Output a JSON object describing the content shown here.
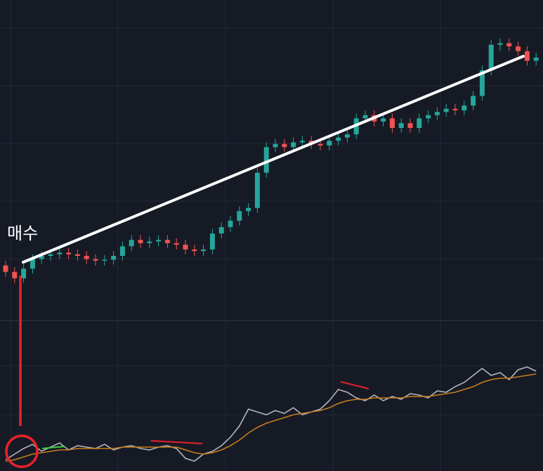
{
  "chart_data": {
    "type": "candlestick",
    "annotation": "매수",
    "ylim": [
      0,
      100
    ],
    "up_color": "#26a69a",
    "down_color": "#ef5350",
    "open": [
      17,
      15,
      13,
      16,
      19,
      20,
      20.5,
      21,
      20.5,
      20,
      19,
      18.5,
      18.8,
      20,
      23,
      25,
      24,
      24.5,
      25,
      24,
      23.5,
      22,
      21.5,
      22,
      27,
      29,
      31,
      34,
      35,
      46,
      54,
      55,
      54,
      55.5,
      56,
      55,
      54.5,
      56,
      57,
      58,
      63,
      64,
      62,
      63,
      60,
      61.5,
      60,
      63,
      64,
      65,
      66,
      65.5,
      67,
      70,
      78,
      86,
      86.5,
      85.5,
      84,
      81
    ],
    "high": [
      18.5,
      16.5,
      17.5,
      20.5,
      21.5,
      22,
      22.5,
      22.5,
      22,
      21.5,
      20.5,
      20.3,
      21.5,
      24.5,
      26.5,
      26.5,
      26,
      26.5,
      26.5,
      25.5,
      25,
      23.5,
      23.5,
      28.5,
      30.5,
      32.5,
      35.5,
      36.5,
      47.5,
      55.5,
      56.5,
      56.5,
      57,
      57.5,
      57.5,
      56.5,
      57.5,
      58.5,
      59.5,
      64.5,
      65.5,
      65.5,
      64.5,
      64.5,
      63,
      63,
      64.5,
      65.5,
      66.5,
      67.5,
      67.5,
      68.5,
      71.5,
      79.5,
      87.5,
      88,
      88,
      87,
      85.5,
      83.5
    ],
    "low": [
      13.5,
      11.5,
      11.5,
      14.5,
      17.5,
      18.5,
      19,
      19,
      18.5,
      17.5,
      17,
      17,
      17.3,
      18.5,
      21.5,
      22.5,
      22.5,
      23,
      22.5,
      22,
      20.5,
      20,
      20,
      20.5,
      25.5,
      27.5,
      29.5,
      32.5,
      33.5,
      44.5,
      52.5,
      52.5,
      52.5,
      54,
      53.5,
      53,
      53,
      54.5,
      55.5,
      56.5,
      61.5,
      60.5,
      60.5,
      58.5,
      58.5,
      58.5,
      58.5,
      61.5,
      62.5,
      63.5,
      64,
      64,
      65.5,
      68.5,
      76.5,
      84,
      84,
      82.5,
      79.5,
      79.5
    ],
    "close": [
      15,
      13,
      16,
      19,
      20,
      20.5,
      21,
      20.5,
      20,
      19,
      18.5,
      18.8,
      20,
      23,
      25,
      24,
      24.5,
      25,
      24,
      23.5,
      22,
      21.5,
      22,
      27,
      29,
      31,
      34,
      35,
      46,
      54,
      55,
      54,
      55.5,
      56,
      55,
      54.5,
      56,
      57,
      58,
      63,
      64,
      62,
      63,
      60,
      61.5,
      60,
      63,
      64,
      65,
      66,
      65.5,
      67,
      70,
      78,
      86,
      86.5,
      85.5,
      84,
      81,
      82
    ],
    "indicator": {
      "ylim": [
        0,
        100
      ],
      "series": [
        {
          "color": "#b2b5be",
          "values": [
            8,
            12,
            16,
            19,
            14,
            17,
            20,
            15,
            18,
            17,
            16,
            19,
            15,
            17,
            18,
            16,
            15,
            17,
            18,
            16,
            9,
            7,
            12,
            14,
            18,
            24,
            32,
            44,
            42,
            40,
            43,
            41,
            45,
            40,
            42,
            44,
            50,
            58,
            56,
            52,
            50,
            54,
            50,
            53,
            51,
            55,
            54,
            52,
            57,
            56,
            60,
            63,
            68,
            73,
            68,
            70,
            65,
            72,
            74,
            71
          ]
        },
        {
          "color": "#c77d1c",
          "values": [
            7,
            8,
            10,
            12,
            13,
            14,
            15,
            15,
            16,
            16,
            16,
            16,
            16,
            17,
            17,
            17,
            17,
            17,
            17,
            17,
            15,
            13,
            12,
            13,
            15,
            18,
            22,
            27,
            31,
            34,
            36,
            38,
            40,
            41,
            42,
            43,
            45,
            48,
            50,
            51,
            51,
            52,
            52,
            52,
            52,
            53,
            53,
            53,
            54,
            55,
            56,
            58,
            60,
            63,
            65,
            66,
            66,
            67,
            68,
            69
          ]
        }
      ]
    }
  }
}
